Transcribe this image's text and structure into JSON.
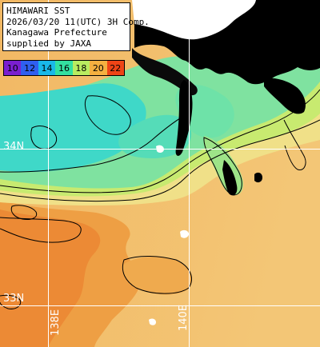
{
  "info": {
    "lines": [
      "HIMAWARI SST",
      "2026/03/20 11(UTC) 3H Comp.",
      "Kanagawa Prefecture",
      "supplied by JAXA"
    ]
  },
  "scale": {
    "labels": [
      "10",
      "12",
      "14",
      "16",
      "18",
      "20",
      "22"
    ],
    "colors": [
      "#7a1fd0",
      "#2f5ff0",
      "#19b8e8",
      "#33e0a0",
      "#b8ec60",
      "#f5b040",
      "#ee4416"
    ]
  },
  "grid": {
    "lat_labels": [
      "34N",
      "33N"
    ],
    "lon_labels": [
      "138E",
      "140E"
    ]
  },
  "colors": {
    "land": "#000000",
    "no_data": "#ffffff",
    "grid": "#ffffff",
    "contour": "#000000"
  }
}
